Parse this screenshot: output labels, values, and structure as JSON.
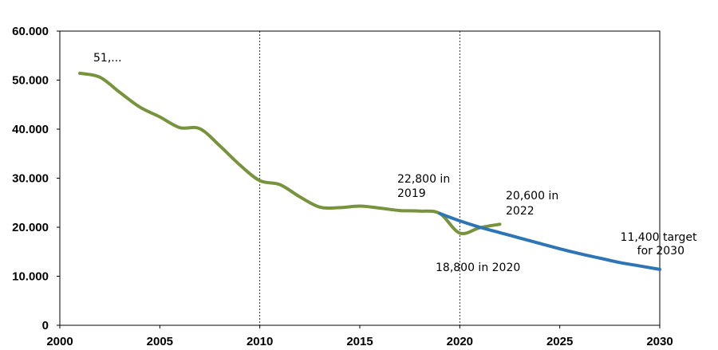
{
  "chart_data": {
    "type": "line",
    "title": "",
    "xlabel": "",
    "ylabel": "",
    "xlim": [
      2000,
      2030
    ],
    "ylim": [
      0,
      60000
    ],
    "x_ticks": [
      2000,
      2005,
      2010,
      2015,
      2020,
      2025,
      2030
    ],
    "x_tick_labels": [
      "2000",
      "2005",
      "2010",
      "2015",
      "2020",
      "2025",
      "2030"
    ],
    "y_ticks": [
      0,
      10000,
      20000,
      30000,
      40000,
      50000,
      60000
    ],
    "y_tick_labels": [
      "0",
      "10.000",
      "20.000",
      "30.000",
      "40.000",
      "50.000",
      "60.000"
    ],
    "reference_lines_x": [
      2010,
      2020
    ],
    "grid": false,
    "legend": "none",
    "series": [
      {
        "color": "#77933c",
        "points": [
          [
            2001,
            51400
          ],
          [
            2002,
            50600
          ],
          [
            2003,
            47500
          ],
          [
            2004,
            44500
          ],
          [
            2005,
            42500
          ],
          [
            2006,
            40300
          ],
          [
            2007,
            40100
          ],
          [
            2008,
            36600
          ],
          [
            2009,
            32700
          ],
          [
            2010,
            29500
          ],
          [
            2011,
            28700
          ],
          [
            2012,
            26200
          ],
          [
            2013,
            24100
          ],
          [
            2014,
            24000
          ],
          [
            2015,
            24300
          ],
          [
            2016,
            23900
          ],
          [
            2017,
            23400
          ],
          [
            2018,
            23300
          ],
          [
            2019,
            22800
          ],
          [
            2020,
            18800
          ],
          [
            2021,
            19900
          ],
          [
            2022,
            20600
          ]
        ]
      },
      {
        "color": "#2e75b6",
        "points": [
          [
            2019,
            22800
          ],
          [
            2020,
            21300
          ],
          [
            2021,
            20000
          ],
          [
            2022,
            18900
          ],
          [
            2023,
            17800
          ],
          [
            2024,
            16700
          ],
          [
            2025,
            15600
          ],
          [
            2026,
            14600
          ],
          [
            2027,
            13700
          ],
          [
            2028,
            12800
          ],
          [
            2029,
            12100
          ],
          [
            2030,
            11400
          ]
        ]
      }
    ],
    "annotations": [
      {
        "id": "ann-2001",
        "lines": [
          "51,..."
        ]
      },
      {
        "id": "ann-2019",
        "lines": [
          "22,800 in",
          "2019"
        ]
      },
      {
        "id": "ann-2022",
        "lines": [
          "20,600 in",
          "2022"
        ]
      },
      {
        "id": "ann-2020",
        "lines": [
          "18,800 in 2020"
        ]
      },
      {
        "id": "ann-2030",
        "lines": [
          "11,400 target",
          "for 2030"
        ]
      }
    ]
  }
}
